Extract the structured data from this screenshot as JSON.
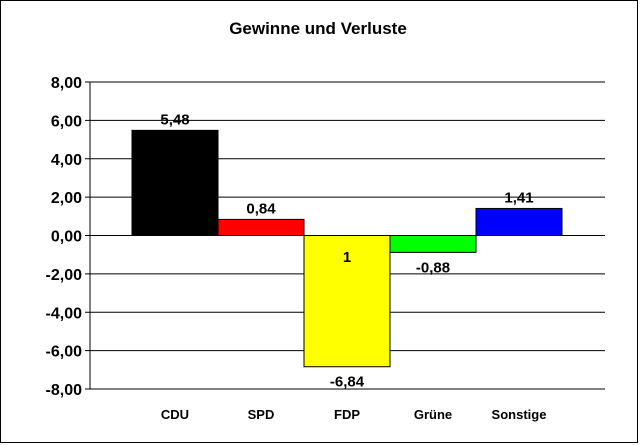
{
  "chart_data": {
    "type": "bar",
    "title": "Gewinne und Verluste",
    "xlabel": "",
    "ylabel": "",
    "categories": [
      "CDU",
      "SPD",
      "FDP",
      "Grüne",
      "Sonstige"
    ],
    "values": [
      5.48,
      0.84,
      -6.84,
      -0.88,
      1.41
    ],
    "data_labels": [
      "5,48",
      "0,84",
      "-6,84",
      "-0,88",
      "1,41"
    ],
    "extra_label": "1",
    "ylim": [
      -8,
      8
    ],
    "yticks": [
      8,
      6,
      4,
      2,
      0,
      -2,
      -4,
      -6,
      -8
    ],
    "ytick_labels": [
      "8,00",
      "6,00",
      "4,00",
      "2,00",
      "0,00",
      "-2,00",
      "-4,00",
      "-6,00",
      "-8,00"
    ],
    "grid": true,
    "legend": "none",
    "bar_colors": [
      "#000000",
      "#ff0000",
      "#ffff00",
      "#00ff00",
      "#0000ff"
    ]
  }
}
